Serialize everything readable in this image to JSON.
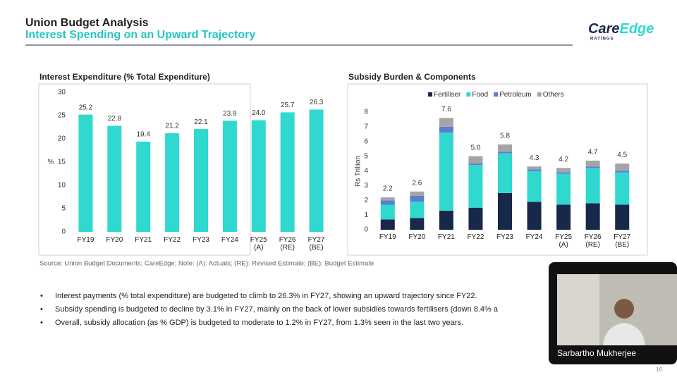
{
  "header": {
    "title": "Union Budget Analysis",
    "subtitle": "Interest Spending on an Upward Trajectory"
  },
  "logo": {
    "left": "Care",
    "right": "Edge",
    "tagline": "RATINGS"
  },
  "chart_data": [
    {
      "type": "bar",
      "title": "Interest Expenditure (% Total Expenditure)",
      "ylabel": "%",
      "categories": [
        "FY19",
        "FY20",
        "FY21",
        "FY22",
        "FY23",
        "FY24",
        "FY25 (A)",
        "FY26 (RE)",
        "FY27 (BE)"
      ],
      "values": [
        25.2,
        22.8,
        19.4,
        21.2,
        22.1,
        23.9,
        24.0,
        25.7,
        26.3
      ],
      "value_labels": [
        "25.2",
        "22.8",
        "19.4",
        "21.2",
        "22.1",
        "23.9",
        "24.0",
        "25.7",
        "26.3"
      ],
      "color": "#2fd9cf",
      "ylim": [
        0,
        30
      ],
      "yticks": [
        0,
        5,
        10,
        15,
        20,
        25,
        30
      ]
    },
    {
      "type": "stacked_bar",
      "title": "Subsidy Burden & Components",
      "ylabel": "Rs Trillion",
      "categories": [
        "FY19",
        "FY20",
        "FY21",
        "FY22",
        "FY23",
        "FY24",
        "FY25 (A)",
        "FY26 (RE)",
        "FY27 (BE)"
      ],
      "series": [
        {
          "name": "Fertiliser",
          "color": "#17284a",
          "values": [
            0.7,
            0.8,
            1.3,
            1.5,
            2.5,
            1.9,
            1.7,
            1.8,
            1.7
          ]
        },
        {
          "name": "Food",
          "color": "#2fd9cf",
          "values": [
            1.0,
            1.1,
            5.3,
            2.9,
            2.7,
            2.1,
            2.1,
            2.4,
            2.2
          ]
        },
        {
          "name": "Petroleum",
          "color": "#5a7fcf",
          "values": [
            0.3,
            0.4,
            0.4,
            0.1,
            0.1,
            0.1,
            0.1,
            0.1,
            0.1
          ]
        },
        {
          "name": "Others",
          "color": "#a5a5a5",
          "values": [
            0.2,
            0.3,
            0.6,
            0.5,
            0.5,
            0.2,
            0.3,
            0.4,
            0.5
          ]
        }
      ],
      "totals": [
        2.2,
        2.6,
        7.6,
        5.0,
        5.8,
        4.3,
        4.2,
        4.7,
        4.5
      ],
      "total_labels": [
        "2.2",
        "2.6",
        "7.6",
        "5.0",
        "5.8",
        "4.3",
        "4.2",
        "4.7",
        "4.5"
      ],
      "legend": "top",
      "ylim": [
        0,
        8
      ],
      "yticks": [
        0,
        1,
        2,
        3,
        4,
        5,
        6,
        7,
        8
      ]
    }
  ],
  "source": "Source: Union Budget Documents; CareEdge; Note: (A): Actuals; (RE): Revised Estimate; (BE): Budget Estimate",
  "bullets": [
    "Interest payments (% total expenditure) are budgeted to climb to 26.3% in FY27, showing an upward trajectory since FY22.",
    "Subsidy spending is budgeted to decline by 3.1% in FY27, mainly on the back of lower subsidies towards fertilisers (down 8.4% a",
    "Overall, subsidy allocation (as % GDP) is budgeted to moderate to 1.2% in FY27, from 1.3% seen in the last two years."
  ],
  "video": {
    "speaker": "Sarbartho Mukherjee"
  },
  "page_number": "16"
}
